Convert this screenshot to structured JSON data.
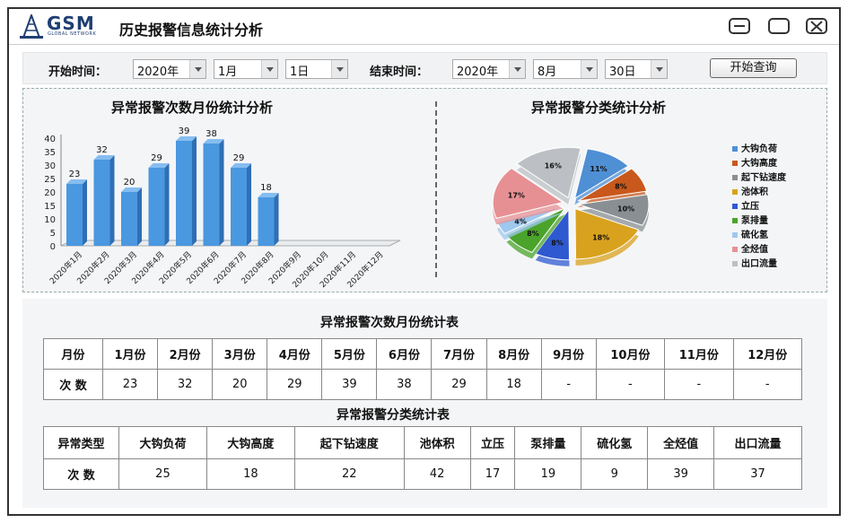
{
  "app": {
    "brand": "GSM",
    "brand_sub": "GLOBAL NETWORK",
    "title": "历史报警信息统计分析"
  },
  "filters": {
    "start_label": "开始时间：",
    "start_year": "2020年",
    "start_month": "1月",
    "start_day": "1日",
    "end_label": "结束时间：",
    "end_year": "2020年",
    "end_month": "8月",
    "end_day": "30日",
    "query_button": "开始查询"
  },
  "charts": {
    "bar_title": "异常报警次数月份统计分析",
    "pie_title": "异常报警分类统计分析"
  },
  "chart_data": [
    {
      "type": "bar",
      "title": "异常报警次数月份统计分析",
      "categories": [
        "2020年1月",
        "2020年2月",
        "2020年3月",
        "2020年4月",
        "2020年5月",
        "2020年6月",
        "2020年7月",
        "2020年8月",
        "2020年9月",
        "2020年10月",
        "2020年11月",
        "2020年12月"
      ],
      "values": [
        23,
        32,
        20,
        29,
        39,
        38,
        29,
        18,
        null,
        null,
        null,
        null
      ],
      "yticks": [
        0,
        5,
        10,
        15,
        20,
        25,
        30,
        35,
        40
      ],
      "ylim": [
        0,
        40
      ],
      "color": "#4a98e0"
    },
    {
      "type": "pie",
      "title": "异常报警分类统计分析",
      "legend_position": "right",
      "slices": [
        {
          "label": "大钩负荷",
          "percent": 11,
          "color": "#4f8fd4"
        },
        {
          "label": "大钩高度",
          "percent": 8,
          "color": "#c9581c"
        },
        {
          "label": "起下钻速度",
          "percent": 10,
          "color": "#8a8f93"
        },
        {
          "label": "池体积",
          "percent": 18,
          "color": "#d9a21e"
        },
        {
          "label": "立压",
          "percent": 8,
          "color": "#2f59d1"
        },
        {
          "label": "泵排量",
          "percent": 8,
          "color": "#4aa32a"
        },
        {
          "label": "硫化氢",
          "percent": 4,
          "color": "#9fc8ee"
        },
        {
          "label": "全烃值",
          "percent": 17,
          "color": "#e79094"
        },
        {
          "label": "出口流量",
          "percent": 16,
          "color": "#bcc0c4"
        }
      ]
    }
  ],
  "monthly_table": {
    "title": "异常报警次数月份统计表",
    "row_header_1": "月份",
    "row_header_2": "次 数",
    "months": [
      "1月份",
      "2月份",
      "3月份",
      "4月份",
      "5月份",
      "6月份",
      "7月份",
      "8月份",
      "9月份",
      "10月份",
      "11月份",
      "12月份"
    ],
    "counts": [
      "23",
      "32",
      "20",
      "29",
      "39",
      "38",
      "29",
      "18",
      "-",
      "-",
      "-",
      "-"
    ]
  },
  "category_table": {
    "title": "异常报警分类统计表",
    "row_header_1": "异常类型",
    "row_header_2": "次 数",
    "types": [
      "大钩负荷",
      "大钩高度",
      "起下钻速度",
      "池体积",
      "立压",
      "泵排量",
      "硫化氢",
      "全烃值",
      "出口流量"
    ],
    "counts": [
      "25",
      "18",
      "22",
      "42",
      "17",
      "19",
      "9",
      "39",
      "37"
    ]
  }
}
